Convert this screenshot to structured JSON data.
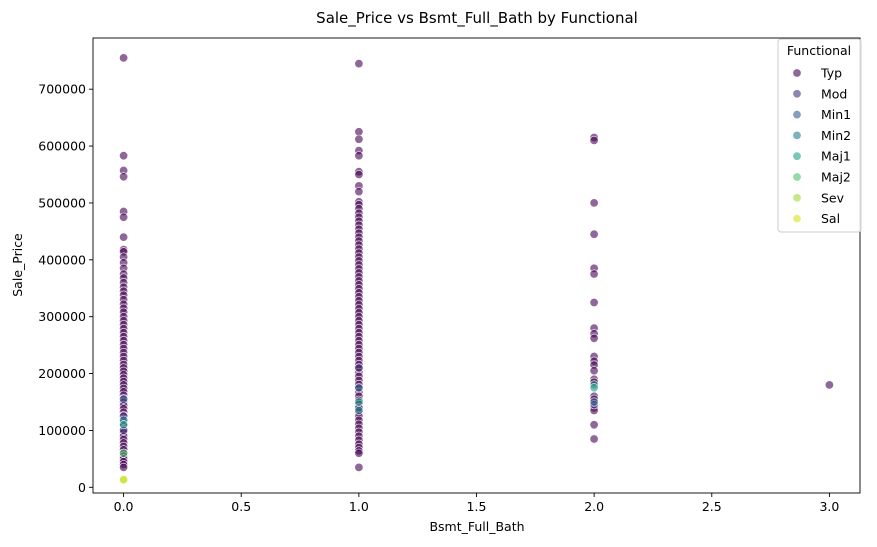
{
  "chart_data": {
    "type": "scatter",
    "title": "Sale_Price vs Bsmt_Full_Bath by Functional",
    "xlabel": "Bsmt_Full_Bath",
    "ylabel": "Sale_Price",
    "xlim": [
      -0.13,
      3.13
    ],
    "ylim": [
      -10000,
      790000
    ],
    "xticks": [
      0.0,
      0.5,
      1.0,
      1.5,
      2.0,
      2.5,
      3.0
    ],
    "xtick_labels": [
      "0.0",
      "0.5",
      "1.0",
      "1.5",
      "2.0",
      "2.5",
      "3.0"
    ],
    "yticks": [
      0,
      100000,
      200000,
      300000,
      400000,
      500000,
      600000,
      700000
    ],
    "ytick_labels": [
      "0",
      "100000",
      "200000",
      "300000",
      "400000",
      "500000",
      "600000",
      "700000"
    ],
    "grid": false,
    "legend": {
      "title": "Functional",
      "placement": "top-right"
    },
    "series": [
      {
        "name": "Typ",
        "color": "#440154",
        "points": [
          [
            0,
            755000
          ],
          [
            0,
            583000
          ],
          [
            0,
            557000
          ],
          [
            0,
            546000
          ],
          [
            0,
            485000
          ],
          [
            0,
            475000
          ],
          [
            0,
            440000
          ],
          [
            0,
            418000
          ],
          [
            0,
            414000
          ],
          [
            0,
            405000
          ],
          [
            0,
            395000
          ],
          [
            0,
            385000
          ],
          [
            0,
            375000
          ],
          [
            0,
            368000
          ],
          [
            0,
            360000
          ],
          [
            0,
            352000
          ],
          [
            0,
            345000
          ],
          [
            0,
            338000
          ],
          [
            0,
            330000
          ],
          [
            0,
            322000
          ],
          [
            0,
            315000
          ],
          [
            0,
            308000
          ],
          [
            0,
            300000
          ],
          [
            0,
            293000
          ],
          [
            0,
            286000
          ],
          [
            0,
            279000
          ],
          [
            0,
            272000
          ],
          [
            0,
            265000
          ],
          [
            0,
            258000
          ],
          [
            0,
            251000
          ],
          [
            0,
            244000
          ],
          [
            0,
            237000
          ],
          [
            0,
            230000
          ],
          [
            0,
            223000
          ],
          [
            0,
            216000
          ],
          [
            0,
            210000
          ],
          [
            0,
            204000
          ],
          [
            0,
            198000
          ],
          [
            0,
            192000
          ],
          [
            0,
            186000
          ],
          [
            0,
            180000
          ],
          [
            0,
            174000
          ],
          [
            0,
            168000
          ],
          [
            0,
            162000
          ],
          [
            0,
            156000
          ],
          [
            0,
            150000
          ],
          [
            0,
            144000
          ],
          [
            0,
            138000
          ],
          [
            0,
            132000
          ],
          [
            0,
            126000
          ],
          [
            0,
            120000
          ],
          [
            0,
            114000
          ],
          [
            0,
            108000
          ],
          [
            0,
            102000
          ],
          [
            0,
            96000
          ],
          [
            0,
            90000
          ],
          [
            0,
            84000
          ],
          [
            0,
            78000
          ],
          [
            0,
            72000
          ],
          [
            0,
            66000
          ],
          [
            0,
            60000
          ],
          [
            0,
            55000
          ],
          [
            0,
            50000
          ],
          [
            0,
            45000
          ],
          [
            0,
            40000
          ],
          [
            0,
            35000
          ],
          [
            1,
            745000
          ],
          [
            1,
            625000
          ],
          [
            1,
            612000
          ],
          [
            1,
            592000
          ],
          [
            1,
            583000
          ],
          [
            1,
            555000
          ],
          [
            1,
            550000
          ],
          [
            1,
            530000
          ],
          [
            1,
            520000
          ],
          [
            1,
            502000
          ],
          [
            1,
            497000
          ],
          [
            1,
            490000
          ],
          [
            1,
            482000
          ],
          [
            1,
            475000
          ],
          [
            1,
            468000
          ],
          [
            1,
            461000
          ],
          [
            1,
            454000
          ],
          [
            1,
            447000
          ],
          [
            1,
            440000
          ],
          [
            1,
            433000
          ],
          [
            1,
            426000
          ],
          [
            1,
            419000
          ],
          [
            1,
            412000
          ],
          [
            1,
            405000
          ],
          [
            1,
            398000
          ],
          [
            1,
            391000
          ],
          [
            1,
            384000
          ],
          [
            1,
            377000
          ],
          [
            1,
            370000
          ],
          [
            1,
            363000
          ],
          [
            1,
            356000
          ],
          [
            1,
            349000
          ],
          [
            1,
            342000
          ],
          [
            1,
            335000
          ],
          [
            1,
            328000
          ],
          [
            1,
            321000
          ],
          [
            1,
            314000
          ],
          [
            1,
            307000
          ],
          [
            1,
            300000
          ],
          [
            1,
            293000
          ],
          [
            1,
            286000
          ],
          [
            1,
            279000
          ],
          [
            1,
            272000
          ],
          [
            1,
            265000
          ],
          [
            1,
            258000
          ],
          [
            1,
            251000
          ],
          [
            1,
            244000
          ],
          [
            1,
            237000
          ],
          [
            1,
            230000
          ],
          [
            1,
            223000
          ],
          [
            1,
            216000
          ],
          [
            1,
            209000
          ],
          [
            1,
            202000
          ],
          [
            1,
            195000
          ],
          [
            1,
            188000
          ],
          [
            1,
            181000
          ],
          [
            1,
            174000
          ],
          [
            1,
            167000
          ],
          [
            1,
            160000
          ],
          [
            1,
            153000
          ],
          [
            1,
            146000
          ],
          [
            1,
            139000
          ],
          [
            1,
            132000
          ],
          [
            1,
            125000
          ],
          [
            1,
            118000
          ],
          [
            1,
            111000
          ],
          [
            1,
            104000
          ],
          [
            1,
            97000
          ],
          [
            1,
            90000
          ],
          [
            1,
            83000
          ],
          [
            1,
            76000
          ],
          [
            1,
            70000
          ],
          [
            1,
            64000
          ],
          [
            1,
            60000
          ],
          [
            1,
            35000
          ],
          [
            2,
            615000
          ],
          [
            2,
            610000
          ],
          [
            2,
            500000
          ],
          [
            2,
            445000
          ],
          [
            2,
            385000
          ],
          [
            2,
            375000
          ],
          [
            2,
            325000
          ],
          [
            2,
            280000
          ],
          [
            2,
            270000
          ],
          [
            2,
            262000
          ],
          [
            2,
            230000
          ],
          [
            2,
            222000
          ],
          [
            2,
            215000
          ],
          [
            2,
            205000
          ],
          [
            2,
            190000
          ],
          [
            2,
            185000
          ],
          [
            2,
            160000
          ],
          [
            2,
            155000
          ],
          [
            2,
            140000
          ],
          [
            2,
            135000
          ],
          [
            2,
            110000
          ],
          [
            2,
            85000
          ],
          [
            3,
            180000
          ]
        ]
      },
      {
        "name": "Mod",
        "color": "#46327e",
        "points": [
          [
            0,
            125000
          ],
          [
            0,
            100000
          ],
          [
            1,
            210000
          ],
          [
            1,
            140000
          ],
          [
            2,
            145000
          ]
        ]
      },
      {
        "name": "Min1",
        "color": "#365c8d",
        "points": [
          [
            0,
            155000
          ],
          [
            1,
            175000
          ],
          [
            2,
            150000
          ]
        ]
      },
      {
        "name": "Min2",
        "color": "#277f8e",
        "points": [
          [
            0,
            118000
          ],
          [
            1,
            135000
          ],
          [
            2,
            180000
          ]
        ]
      },
      {
        "name": "Maj1",
        "color": "#1fa187",
        "points": [
          [
            0,
            110000
          ],
          [
            1,
            150000
          ],
          [
            2,
            175000
          ]
        ]
      },
      {
        "name": "Maj2",
        "color": "#4ac16d",
        "points": [
          [
            0,
            60000
          ]
        ]
      },
      {
        "name": "Sev",
        "color": "#a0da39",
        "points": [
          [
            0,
            13000
          ]
        ]
      },
      {
        "name": "Sal",
        "color": "#d8e219",
        "points": [
          [
            0,
            13500
          ]
        ]
      }
    ]
  }
}
